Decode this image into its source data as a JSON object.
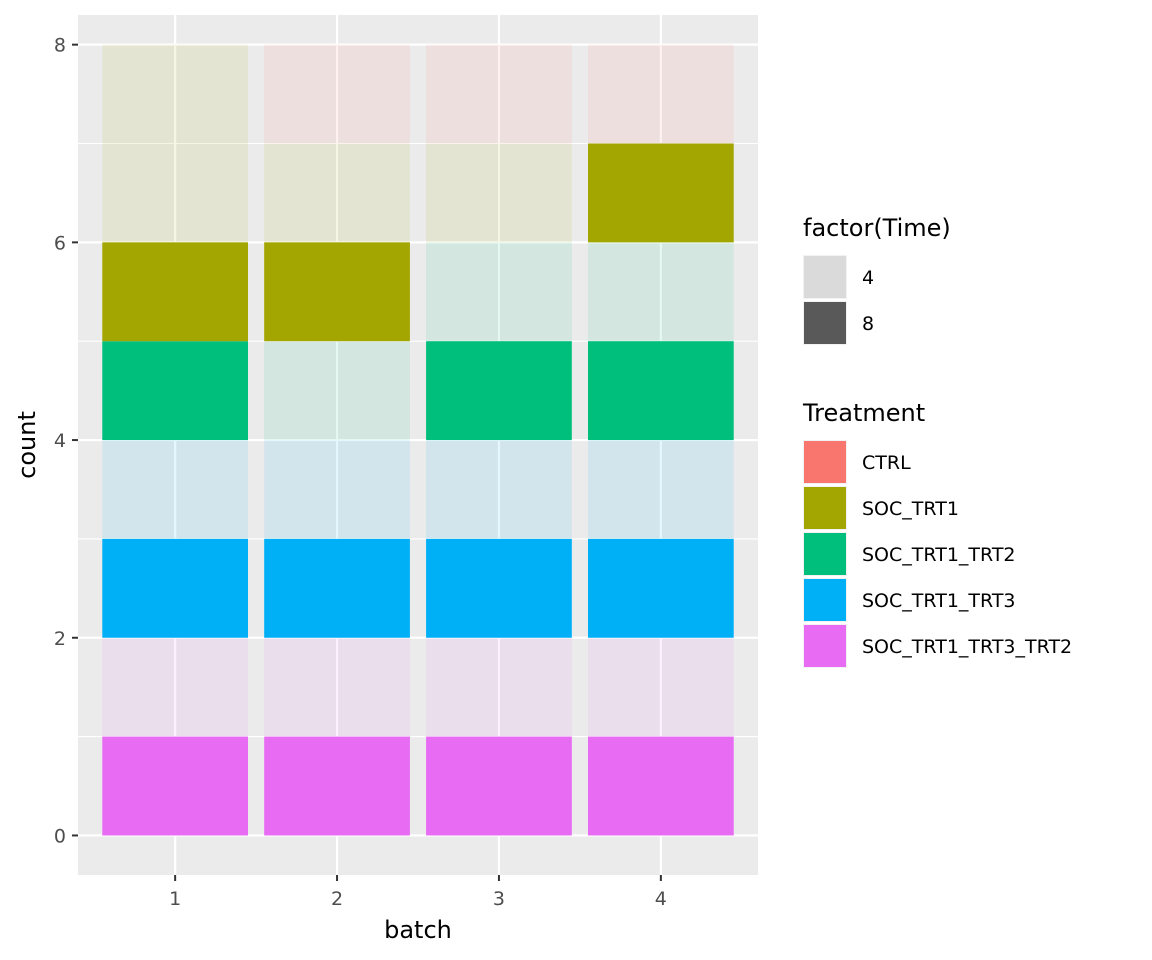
{
  "chart_data": {
    "type": "bar",
    "stacked": true,
    "title": "",
    "xlabel": "batch",
    "ylabel": "count",
    "categories": [
      "1",
      "2",
      "3",
      "4"
    ],
    "ylim": [
      -0.4,
      8.3
    ],
    "y_ticks": [
      0,
      2,
      4,
      6,
      8
    ],
    "grid": true,
    "legend_position": "right",
    "legends": [
      {
        "title": "factor(Time)",
        "aesthetic": "alpha",
        "entries": [
          {
            "label": "4",
            "color": "#dadada"
          },
          {
            "label": "8",
            "color": "#595959"
          }
        ]
      },
      {
        "title": "Treatment",
        "aesthetic": "fill",
        "entries": [
          {
            "label": "CTRL",
            "color": "#F8766D"
          },
          {
            "label": "SOC_TRT1",
            "color": "#A3A500"
          },
          {
            "label": "SOC_TRT1_TRT2",
            "color": "#00BF7D"
          },
          {
            "label": "SOC_TRT1_TRT3",
            "color": "#00B0F6"
          },
          {
            "label": "SOC_TRT1_TRT3_TRT2",
            "color": "#E76BF3"
          }
        ]
      }
    ],
    "segments": [
      {
        "batch": "1",
        "treatment": "SOC_TRT1_TRT3_TRT2",
        "time": "8",
        "ymin": 0,
        "ymax": 1
      },
      {
        "batch": "1",
        "treatment": "SOC_TRT1_TRT3_TRT2",
        "time": "4",
        "ymin": 1,
        "ymax": 2
      },
      {
        "batch": "1",
        "treatment": "SOC_TRT1_TRT3",
        "time": "8",
        "ymin": 2,
        "ymax": 3
      },
      {
        "batch": "1",
        "treatment": "SOC_TRT1_TRT3",
        "time": "4",
        "ymin": 3,
        "ymax": 4
      },
      {
        "batch": "1",
        "treatment": "SOC_TRT1_TRT2",
        "time": "8",
        "ymin": 4,
        "ymax": 5
      },
      {
        "batch": "1",
        "treatment": "SOC_TRT1",
        "time": "8",
        "ymin": 5,
        "ymax": 6
      },
      {
        "batch": "1",
        "treatment": "SOC_TRT1",
        "time": "4",
        "ymin": 6,
        "ymax": 8
      },
      {
        "batch": "2",
        "treatment": "SOC_TRT1_TRT3_TRT2",
        "time": "8",
        "ymin": 0,
        "ymax": 1
      },
      {
        "batch": "2",
        "treatment": "SOC_TRT1_TRT3_TRT2",
        "time": "4",
        "ymin": 1,
        "ymax": 2
      },
      {
        "batch": "2",
        "treatment": "SOC_TRT1_TRT3",
        "time": "8",
        "ymin": 2,
        "ymax": 3
      },
      {
        "batch": "2",
        "treatment": "SOC_TRT1_TRT3",
        "time": "4",
        "ymin": 3,
        "ymax": 4
      },
      {
        "batch": "2",
        "treatment": "SOC_TRT1_TRT2",
        "time": "4",
        "ymin": 4,
        "ymax": 5
      },
      {
        "batch": "2",
        "treatment": "SOC_TRT1",
        "time": "8",
        "ymin": 5,
        "ymax": 6
      },
      {
        "batch": "2",
        "treatment": "SOC_TRT1",
        "time": "4",
        "ymin": 6,
        "ymax": 7
      },
      {
        "batch": "2",
        "treatment": "CTRL",
        "time": "4",
        "ymin": 7,
        "ymax": 8
      },
      {
        "batch": "3",
        "treatment": "SOC_TRT1_TRT3_TRT2",
        "time": "8",
        "ymin": 0,
        "ymax": 1
      },
      {
        "batch": "3",
        "treatment": "SOC_TRT1_TRT3_TRT2",
        "time": "4",
        "ymin": 1,
        "ymax": 2
      },
      {
        "batch": "3",
        "treatment": "SOC_TRT1_TRT3",
        "time": "8",
        "ymin": 2,
        "ymax": 3
      },
      {
        "batch": "3",
        "treatment": "SOC_TRT1_TRT3",
        "time": "4",
        "ymin": 3,
        "ymax": 4
      },
      {
        "batch": "3",
        "treatment": "SOC_TRT1_TRT2",
        "time": "8",
        "ymin": 4,
        "ymax": 5
      },
      {
        "batch": "3",
        "treatment": "SOC_TRT1_TRT2",
        "time": "4",
        "ymin": 5,
        "ymax": 6
      },
      {
        "batch": "3",
        "treatment": "SOC_TRT1",
        "time": "4",
        "ymin": 6,
        "ymax": 7
      },
      {
        "batch": "3",
        "treatment": "CTRL",
        "time": "4",
        "ymin": 7,
        "ymax": 8
      },
      {
        "batch": "4",
        "treatment": "SOC_TRT1_TRT3_TRT2",
        "time": "8",
        "ymin": 0,
        "ymax": 1
      },
      {
        "batch": "4",
        "treatment": "SOC_TRT1_TRT3_TRT2",
        "time": "4",
        "ymin": 1,
        "ymax": 2
      },
      {
        "batch": "4",
        "treatment": "SOC_TRT1_TRT3",
        "time": "8",
        "ymin": 2,
        "ymax": 3
      },
      {
        "batch": "4",
        "treatment": "SOC_TRT1_TRT3",
        "time": "4",
        "ymin": 3,
        "ymax": 4
      },
      {
        "batch": "4",
        "treatment": "SOC_TRT1_TRT2",
        "time": "8",
        "ymin": 4,
        "ymax": 5
      },
      {
        "batch": "4",
        "treatment": "SOC_TRT1_TRT2",
        "time": "4",
        "ymin": 5,
        "ymax": 6
      },
      {
        "batch": "4",
        "treatment": "SOC_TRT1",
        "time": "8",
        "ymin": 6,
        "ymax": 7
      },
      {
        "batch": "4",
        "treatment": "CTRL",
        "time": "4",
        "ymin": 7,
        "ymax": 8
      }
    ],
    "panel_color": "#ebebeb",
    "gridline_color": "#ffffff"
  }
}
